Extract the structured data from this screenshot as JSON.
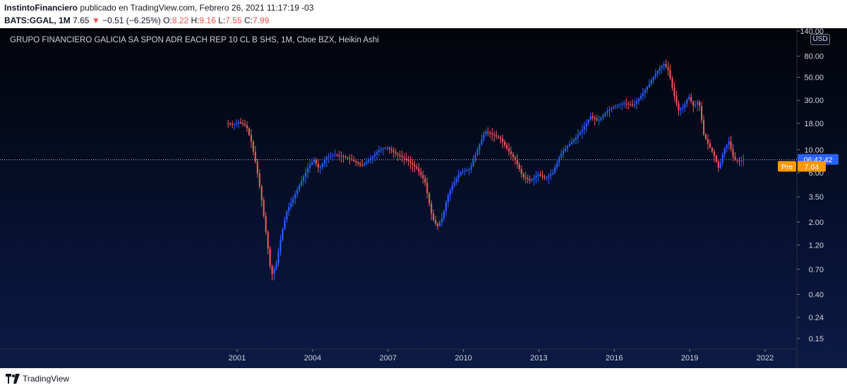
{
  "header": {
    "author": "InstintoFinanciero",
    "published": "publicado en TradingView.com, Febrero 26, 2021 11:17:19 -03",
    "symbol": "BATS:GGAL, 1M",
    "price": "7.65",
    "change": "−0.51 (−6.25%)",
    "o_label": "O:",
    "o_value": "8.22",
    "h_label": "H:",
    "h_value": "9.16",
    "l_label": "L:",
    "l_value": "7.55",
    "c_label": "C:",
    "c_value": "7.99"
  },
  "footer": {
    "brand": "TradingView"
  },
  "colors": {
    "up": "#2962ff",
    "down": "#f05a5a",
    "accent": "#2962ff",
    "pre": "#ff9800"
  },
  "chart_data": {
    "type": "candlestick",
    "title": "GRUPO FINANCIERO GALICIA SA SPON ADR EACH REP 10 CL B SHS, 1M, Cboe BZX, Heikin Ashi",
    "currency": "USD",
    "scale": "log",
    "y_ticks": [
      "140.00",
      "80.00",
      "50.00",
      "30.00",
      "18.00",
      "10.00",
      "6.00",
      "3.50",
      "2.00",
      "1.20",
      "0.70",
      "0.40",
      "0.24",
      "0.15"
    ],
    "y_tick_values": [
      140,
      80,
      50,
      30,
      18,
      10,
      6,
      3.5,
      2,
      1.2,
      0.7,
      0.4,
      0.24,
      0.15
    ],
    "x_ticks": [
      "2001",
      "2004",
      "2007",
      "2010",
      "2013",
      "2016",
      "2019",
      "2022"
    ],
    "x_tick_values": [
      2001,
      2004,
      2007,
      2010,
      2013,
      2016,
      2019,
      2022
    ],
    "last_price_line": 7.99,
    "countdown_label": "06:42:42",
    "pre_label": "Pre",
    "pre_value": "7.64",
    "pre_price": 7.64,
    "grid": false,
    "series": [
      {
        "name": "GGAL",
        "points": [
          [
            2000.6,
            18
          ],
          [
            2000.9,
            17.5
          ],
          [
            2001.1,
            18.5
          ],
          [
            2001.4,
            17
          ],
          [
            2001.6,
            12
          ],
          [
            2001.8,
            7
          ],
          [
            2002.0,
            3.5
          ],
          [
            2002.2,
            1.5
          ],
          [
            2002.4,
            0.6
          ],
          [
            2002.6,
            0.8
          ],
          [
            2002.8,
            1.5
          ],
          [
            2003.0,
            2.5
          ],
          [
            2003.3,
            3.5
          ],
          [
            2003.6,
            5
          ],
          [
            2003.9,
            7
          ],
          [
            2004.1,
            8
          ],
          [
            2004.3,
            6.5
          ],
          [
            2004.6,
            8.5
          ],
          [
            2004.9,
            9
          ],
          [
            2005.3,
            8.5
          ],
          [
            2005.6,
            8
          ],
          [
            2006.0,
            7
          ],
          [
            2006.3,
            8
          ],
          [
            2006.7,
            10
          ],
          [
            2007.0,
            10.5
          ],
          [
            2007.4,
            9
          ],
          [
            2007.8,
            8
          ],
          [
            2008.2,
            6.5
          ],
          [
            2008.5,
            5
          ],
          [
            2008.8,
            2.2
          ],
          [
            2009.0,
            1.8
          ],
          [
            2009.2,
            2.2
          ],
          [
            2009.4,
            3.5
          ],
          [
            2009.6,
            4.5
          ],
          [
            2009.9,
            6
          ],
          [
            2010.3,
            6.5
          ],
          [
            2010.6,
            10
          ],
          [
            2010.9,
            15
          ],
          [
            2011.2,
            14
          ],
          [
            2011.5,
            13
          ],
          [
            2011.8,
            10
          ],
          [
            2012.1,
            8
          ],
          [
            2012.4,
            5.5
          ],
          [
            2012.7,
            5
          ],
          [
            2013.0,
            5.8
          ],
          [
            2013.3,
            5.3
          ],
          [
            2013.6,
            6
          ],
          [
            2013.9,
            9
          ],
          [
            2014.2,
            11
          ],
          [
            2014.5,
            13
          ],
          [
            2014.8,
            16
          ],
          [
            2015.1,
            21
          ],
          [
            2015.4,
            19
          ],
          [
            2015.7,
            23
          ],
          [
            2016.0,
            26
          ],
          [
            2016.4,
            28
          ],
          [
            2016.8,
            27
          ],
          [
            2017.1,
            33
          ],
          [
            2017.4,
            42
          ],
          [
            2017.7,
            55
          ],
          [
            2018.0,
            68
          ],
          [
            2018.2,
            58
          ],
          [
            2018.4,
            35
          ],
          [
            2018.6,
            24
          ],
          [
            2018.8,
            26
          ],
          [
            2019.0,
            33
          ],
          [
            2019.2,
            26
          ],
          [
            2019.4,
            30
          ],
          [
            2019.6,
            14
          ],
          [
            2019.8,
            11
          ],
          [
            2020.0,
            9
          ],
          [
            2020.2,
            6.5
          ],
          [
            2020.4,
            10
          ],
          [
            2020.6,
            12
          ],
          [
            2020.8,
            8
          ],
          [
            2021.0,
            7.8
          ],
          [
            2021.15,
            7.99
          ]
        ]
      }
    ]
  }
}
